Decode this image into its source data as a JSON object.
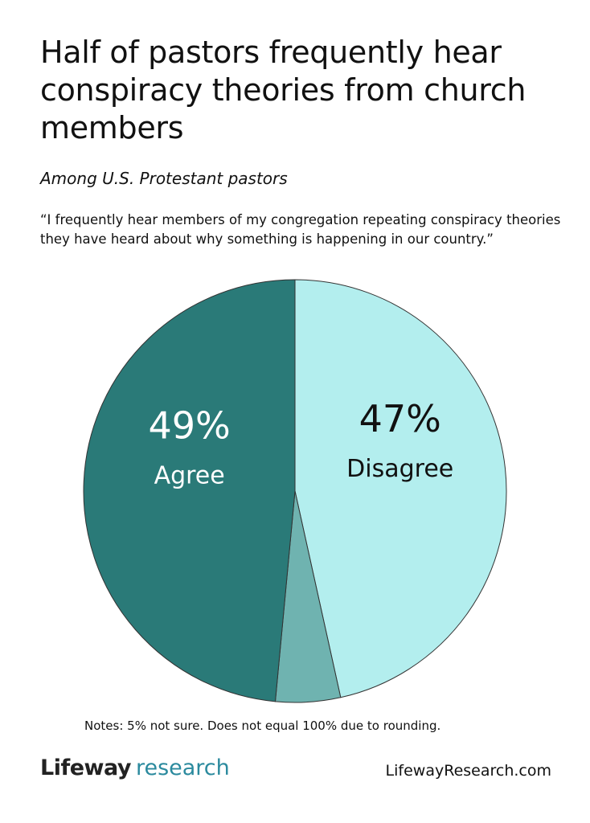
{
  "chart_data": {
    "type": "pie",
    "title": "Half of pastors frequently hear conspiracy theories from church members",
    "subtitle": "Among U.S. Protestant pastors",
    "question": "“I frequently hear members of my congregation repeating conspiracy theories they have heard about why something is happening in our country.”",
    "categories": [
      "Disagree",
      null,
      "Agree"
    ],
    "values": [
      47,
      5,
      49
    ],
    "value_labels": [
      "47%",
      null,
      "49%"
    ],
    "colors": [
      "#b3eeee",
      "#6fb3b0",
      "#2a7a78"
    ],
    "note": "Notes: 5% not sure. Does not equal 100% due to rounding."
  },
  "footer": {
    "brand": "Lifeway",
    "brand_suffix": "research",
    "url": "LifewayResearch.com"
  }
}
